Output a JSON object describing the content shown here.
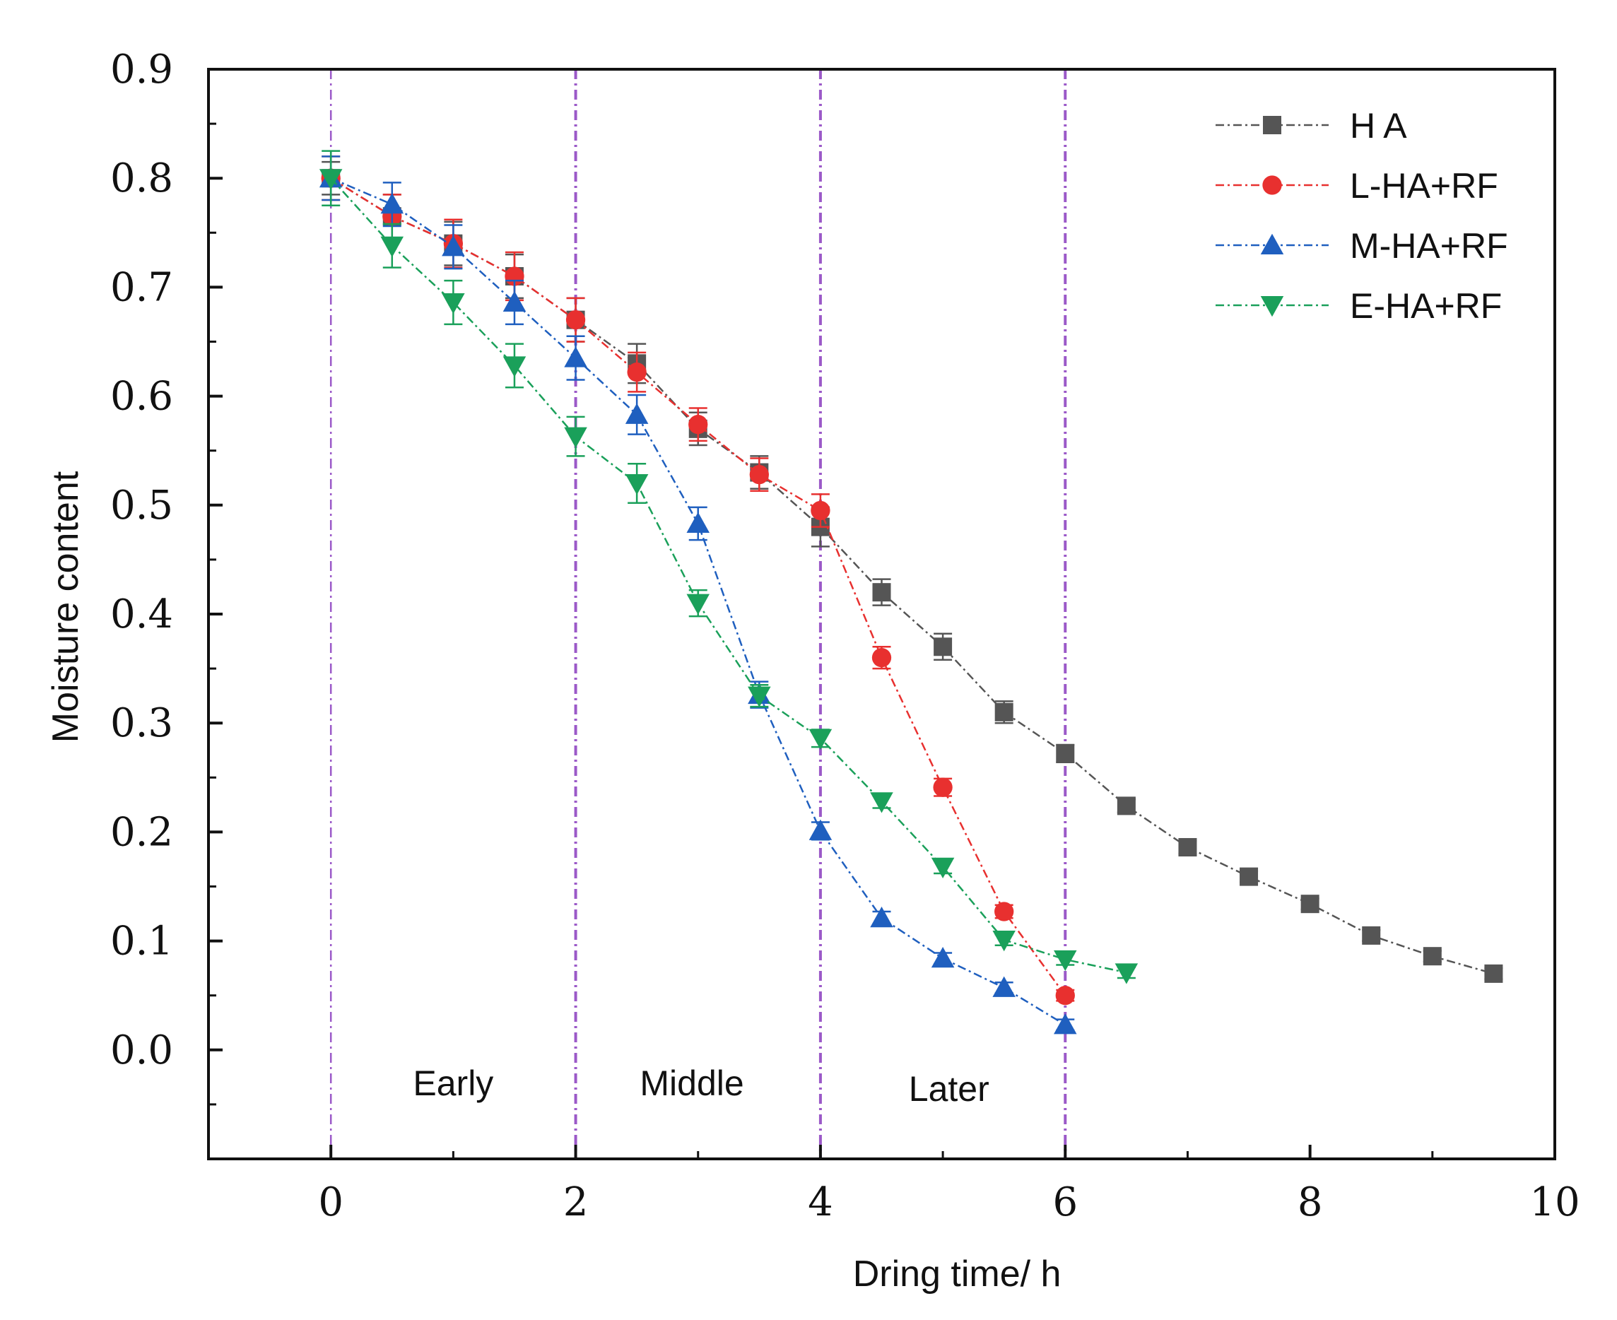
{
  "chart_data": {
    "type": "line",
    "xlabel": "Dring time/ h",
    "ylabel": "Moisture content",
    "xlim": [
      -1,
      10
    ],
    "ylim": [
      -0.1,
      0.9
    ],
    "xticks": [
      0,
      2,
      4,
      6,
      8,
      10
    ],
    "yticks": [
      0.0,
      0.1,
      0.2,
      0.3,
      0.4,
      0.5,
      0.6,
      0.7,
      0.8,
      0.9
    ],
    "ytick_labels": [
      "0.0",
      "0.1",
      "0.2",
      "0.3",
      "0.4",
      "0.5",
      "0.6",
      "0.7",
      "0.8",
      "0.9"
    ],
    "grid": false,
    "legend_position": "top-right",
    "phase_lines": [
      0,
      2,
      4,
      6
    ],
    "phase_labels": [
      {
        "text": "Early",
        "x": 1.0,
        "y": -0.03
      },
      {
        "text": "Middle",
        "x": 2.95,
        "y": -0.03
      },
      {
        "text": "Later",
        "x": 5.05,
        "y": -0.035
      }
    ],
    "series": [
      {
        "name": "H A",
        "color": "#555555",
        "marker": "square",
        "x": [
          0,
          0.5,
          1,
          1.5,
          2,
          2.5,
          3,
          3.5,
          4,
          4.5,
          5,
          5.5,
          6,
          6.5,
          7,
          7.5,
          8,
          8.5,
          9,
          9.5
        ],
        "values": [
          0.8,
          0.765,
          0.74,
          0.71,
          0.67,
          0.63,
          0.57,
          0.53,
          0.48,
          0.42,
          0.37,
          0.31,
          0.272,
          0.224,
          0.186,
          0.159,
          0.134,
          0.105,
          0.086,
          0.07
        ],
        "errors": [
          0.015,
          0.02,
          0.02,
          0.02,
          0.02,
          0.018,
          0.015,
          0.015,
          0.018,
          0.012,
          0.012,
          0.01,
          0.008,
          0.006,
          0.006,
          0.005,
          0.005,
          0.005,
          0.005,
          0.005
        ]
      },
      {
        "name": "L-HA+RF",
        "color": "#e8302f",
        "marker": "circle",
        "x": [
          0,
          0.5,
          1,
          1.5,
          2,
          2.5,
          3,
          3.5,
          4,
          4.5,
          5,
          5.5,
          6
        ],
        "values": [
          0.8,
          0.765,
          0.74,
          0.71,
          0.67,
          0.622,
          0.574,
          0.528,
          0.495,
          0.36,
          0.241,
          0.127,
          0.05
        ],
        "errors": [
          0.02,
          0.02,
          0.022,
          0.022,
          0.02,
          0.018,
          0.015,
          0.015,
          0.015,
          0.01,
          0.008,
          0.006,
          0.005
        ]
      },
      {
        "name": "M-HA+RF",
        "color": "#1f5fbf",
        "marker": "triangle-up",
        "x": [
          0,
          0.5,
          1,
          1.5,
          2,
          2.5,
          3,
          3.5,
          4,
          4.5,
          5,
          5.5,
          6
        ],
        "values": [
          0.8,
          0.776,
          0.737,
          0.686,
          0.635,
          0.583,
          0.483,
          0.326,
          0.201,
          0.121,
          0.084,
          0.057,
          0.023
        ],
        "errors": [
          0.02,
          0.02,
          0.02,
          0.02,
          0.02,
          0.018,
          0.015,
          0.012,
          0.008,
          0.006,
          0.005,
          0.005,
          0.005
        ]
      },
      {
        "name": "E-HA+RF",
        "color": "#1aa05a",
        "marker": "triangle-down",
        "x": [
          0,
          0.5,
          1,
          1.5,
          2,
          2.5,
          3,
          3.5,
          4,
          4.5,
          5,
          5.5,
          6,
          6.5
        ],
        "values": [
          0.8,
          0.738,
          0.686,
          0.628,
          0.563,
          0.52,
          0.41,
          0.325,
          0.286,
          0.228,
          0.168,
          0.101,
          0.083,
          0.071
        ],
        "errors": [
          0.025,
          0.02,
          0.02,
          0.02,
          0.018,
          0.018,
          0.012,
          0.01,
          0.008,
          0.006,
          0.006,
          0.005,
          0.005,
          0.005
        ]
      }
    ]
  }
}
